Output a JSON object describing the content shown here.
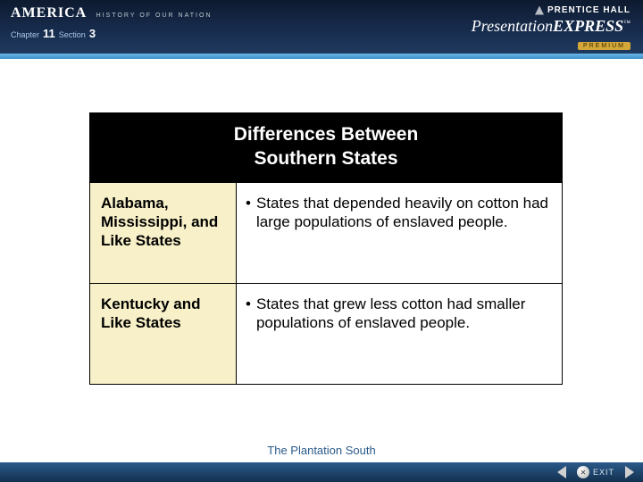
{
  "header": {
    "book_title": "AMERICA",
    "book_subtitle": "HISTORY OF OUR NATION",
    "chapter_label": "Chapter",
    "chapter_number": "11",
    "section_label": "Section",
    "section_number": "3",
    "publisher": "PRENTICE HALL",
    "product_prefix": "Presentation",
    "product_bold": "EXPRESS",
    "trademark": "™",
    "premium_label": "PREMIUM"
  },
  "table": {
    "title_line1": "Differences Between",
    "title_line2": "Southern States",
    "rows": [
      {
        "label": "Alabama, Mississippi, and Like States",
        "bullet": "•",
        "text": "States that depended heavily on cotton had large populations of enslaved people."
      },
      {
        "label": "Kentucky and Like States",
        "bullet": "•",
        "text": "States that grew less cotton had smaller populations of enslaved people."
      }
    ]
  },
  "footer": {
    "slide_title": "The Plantation South",
    "exit_label": "EXIT"
  },
  "colors": {
    "header_bg_top": "#0d1a2f",
    "header_bg_bottom": "#1e3a5f",
    "cyan_bar": "#3a8fc8",
    "cell_left_bg": "#f7f0c8",
    "table_header_bg": "#000000",
    "footer_text": "#2a5a8a",
    "premium_bg": "#d4a838"
  }
}
